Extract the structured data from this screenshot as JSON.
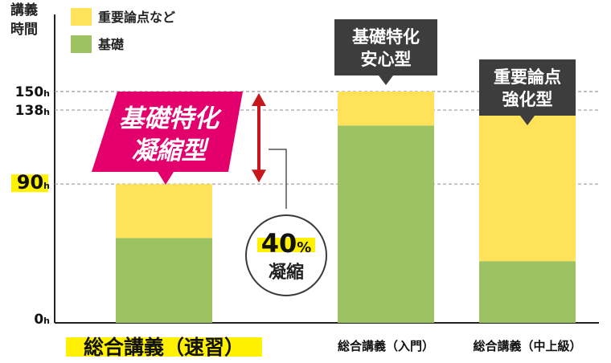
{
  "chart_data": {
    "type": "bar",
    "stacked": true,
    "y_axis_title": [
      "講義",
      "時間"
    ],
    "y_ticks": [
      {
        "value": 0,
        "label": "0h",
        "highlight": false
      },
      {
        "value": 90,
        "label": "90h",
        "highlight": true
      },
      {
        "value": 138,
        "label": "138h",
        "highlight": false
      },
      {
        "value": 150,
        "label": "150h",
        "highlight": false
      }
    ],
    "ylim": [
      0,
      150
    ],
    "gridlines": "dashed at 90, 138, 150",
    "legend": [
      {
        "label": "重要論点など",
        "color": "#fde25a"
      },
      {
        "label": "基礎",
        "color": "#9dc262"
      }
    ],
    "legend_position": "top-left",
    "categories": [
      "総合講義（速習）",
      "総合講義（入門）",
      "総合講義（中上級）"
    ],
    "category_highlight": [
      true,
      false,
      false
    ],
    "series": [
      {
        "name": "基礎",
        "color": "#9dc262",
        "values": [
          55,
          128,
          40
        ]
      },
      {
        "name": "重要論点など",
        "color": "#fde25a",
        "values": [
          35,
          22,
          98
        ]
      }
    ],
    "totals": [
      90,
      150,
      138
    ],
    "callouts": [
      {
        "bar": 0,
        "lines": [
          "基礎特化",
          "凝縮型"
        ],
        "style": "pink-slanted"
      },
      {
        "bar": 1,
        "lines": [
          "基礎特化",
          "安心型"
        ],
        "style": "dark"
      },
      {
        "bar": 2,
        "lines": [
          "重要論点",
          "強化型"
        ],
        "style": "dark"
      }
    ],
    "reduction_badge": {
      "value": "40",
      "unit": "%",
      "label": "凝縮"
    }
  },
  "colors": {
    "yellow": "#fde25a",
    "green": "#9dc262",
    "pink": "#e3006d",
    "dark": "#3d3d3d",
    "red_arrow": "#c8161d",
    "highlight": "#fff100"
  }
}
